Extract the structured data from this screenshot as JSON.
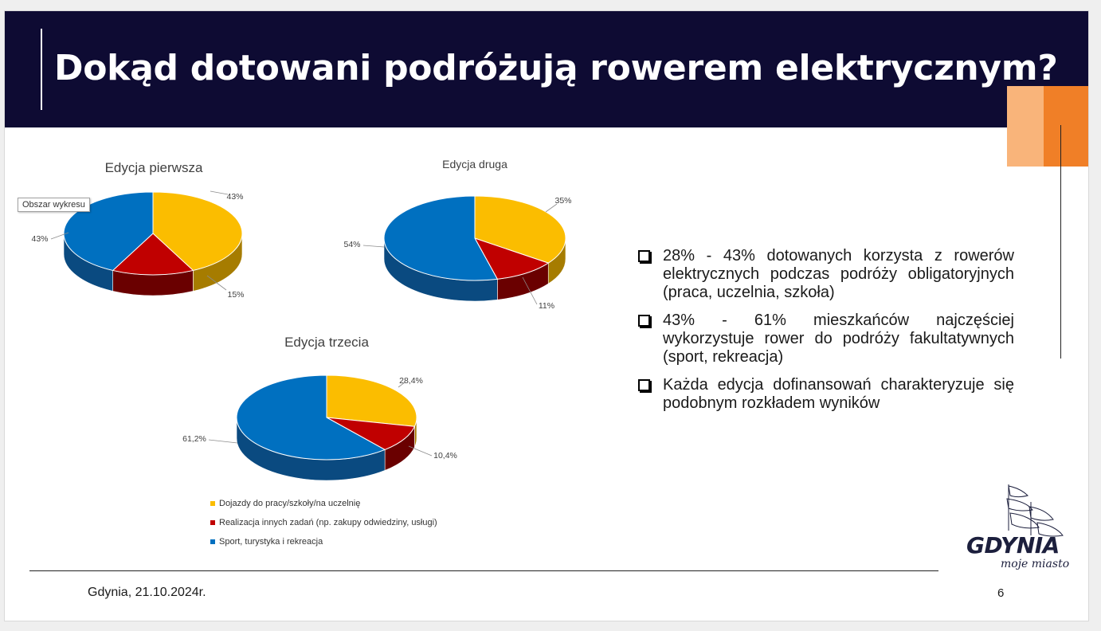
{
  "slide": {
    "title": "Dokąd dotowani podróżują rowerem elektrycznym?",
    "footer": "Gdynia, 21.10.2024r.",
    "page_number": "6",
    "tooltip": "Obszar wykresu"
  },
  "logo": {
    "name": "GDYNIA",
    "tagline": "moje miasto",
    "icon": "sailing-ship-icon"
  },
  "colors": {
    "header_bg": "#0e0b33",
    "accent_light": "#f9b47a",
    "accent_dark": "#f07f27",
    "commute": "#fbbd00",
    "other_tasks": "#c00000",
    "sport": "#0070c0"
  },
  "legend": [
    "Dojazdy do pracy/szkoły/na uczelnię",
    "Realizacja innych zadań (np. zakupy odwiedziny, usługi)",
    "Sport, turystyka i rekreacja"
  ],
  "bullets": [
    "28% - 43% dotowanych korzysta z rowerów elektrycznych podczas podróży obligatoryjnych (praca, uczelnia, szkoła)",
    "43% - 61% mieszkańców najczęściej wykorzystuje rower do podróży fakultatywnych (sport, rekreacja)",
    "Każda edycja dofinansowań charakteryzuje się podobnym rozkładem wyników"
  ],
  "chart_data": [
    {
      "type": "pie",
      "title": "Edycja pierwsza",
      "categories": [
        "Dojazdy do pracy/szkoły/na uczelnię",
        "Realizacja innych zadań (np. zakupy odwiedziny, usługi)",
        "Sport, turystyka i rekreacja"
      ],
      "values": [
        43,
        15,
        43
      ],
      "labels": [
        "43%",
        "15%",
        "43%"
      ]
    },
    {
      "type": "pie",
      "title": "Edycja druga",
      "categories": [
        "Dojazdy do pracy/szkoły/na uczelnię",
        "Realizacja innych zadań (np. zakupy odwiedziny, usługi)",
        "Sport, turystyka i rekreacja"
      ],
      "values": [
        35,
        11,
        54
      ],
      "labels": [
        "35%",
        "11%",
        "54%"
      ]
    },
    {
      "type": "pie",
      "title": "Edycja trzecia",
      "categories": [
        "Dojazdy do pracy/szkoły/na uczelnię",
        "Realizacja innych zadań (np. zakupy odwiedziny, usługi)",
        "Sport, turystyka i rekreacja"
      ],
      "values": [
        28.4,
        10.4,
        61.2
      ],
      "labels": [
        "28,4%",
        "10,4%",
        "61,2%"
      ]
    }
  ]
}
